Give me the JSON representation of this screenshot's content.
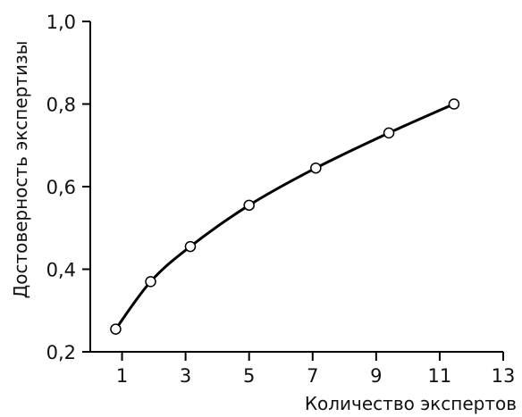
{
  "chart_data": {
    "type": "line",
    "title": "",
    "xlabel": "Количество экспертов",
    "ylabel": "Достоверность экспертизы",
    "xlim": [
      0,
      13
    ],
    "ylim": [
      0.2,
      1.0
    ],
    "x_ticks": [
      1,
      3,
      5,
      7,
      9,
      11,
      13
    ],
    "x_tick_labels": [
      "1",
      "3",
      "5",
      "7",
      "9",
      "11",
      "13"
    ],
    "y_ticks": [
      0.2,
      0.4,
      0.6,
      0.8,
      1.0
    ],
    "y_tick_labels": [
      "0,2",
      "0,4",
      "0,6",
      "0,8",
      "1,0"
    ],
    "grid": false,
    "series": [
      {
        "x": [
          0.8,
          1.9,
          3.15,
          5.0,
          7.1,
          9.4,
          11.45
        ],
        "y": [
          0.255,
          0.37,
          0.455,
          0.555,
          0.645,
          0.73,
          0.8
        ]
      }
    ],
    "colors": {
      "line": "#000000",
      "marker_fill": "#ffffff"
    }
  }
}
